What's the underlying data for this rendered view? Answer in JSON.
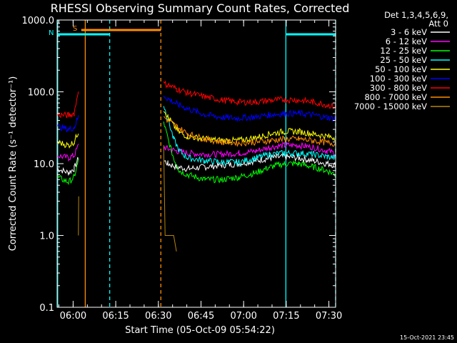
{
  "chart_data": {
    "type": "line",
    "title": "RHESSI Observing Summary Count Rates, Corrected",
    "xlabel": "Start Time (05-Oct-09 05:54:22)",
    "ylabel": "Corrected Count Rate (s⁻¹ detector⁻¹)",
    "yscale": "log",
    "ylim": [
      0.1,
      1000
    ],
    "xlim_minutes": [
      0,
      98
    ],
    "x_unit": "minutes after 05:54:22",
    "y_ticks": [
      {
        "value": 1000,
        "label": "1000.0"
      },
      {
        "value": 100,
        "label": "100.0"
      },
      {
        "value": 10,
        "label": "10.0"
      },
      {
        "value": 1,
        "label": "1.0"
      },
      {
        "value": 0.1,
        "label": "0.1"
      }
    ],
    "x_ticks": [
      {
        "minute": 5.63,
        "label": "06:00"
      },
      {
        "minute": 20.63,
        "label": "06:15"
      },
      {
        "minute": 35.63,
        "label": "06:30"
      },
      {
        "minute": 50.63,
        "label": "06:45"
      },
      {
        "minute": 65.63,
        "label": "07:00"
      },
      {
        "minute": 80.63,
        "label": "07:15"
      },
      {
        "minute": 95.63,
        "label": "07:30"
      }
    ],
    "legend_header": [
      "Det 1,3,4,5,6,9,",
      "Att 0"
    ],
    "legend_position": "right",
    "series": [
      {
        "name": "3 - 6 keV",
        "color": "#ffffff",
        "points": [
          [
            0,
            8.5
          ],
          [
            4,
            7.5
          ],
          [
            6,
            8.5
          ],
          [
            7.5,
            12
          ],
          [
            9,
            null
          ],
          [
            37.5,
            11
          ],
          [
            39,
            10
          ],
          [
            42,
            9
          ],
          [
            46,
            8.5
          ],
          [
            52,
            9
          ],
          [
            58,
            9.5
          ],
          [
            64,
            10
          ],
          [
            70,
            11
          ],
          [
            75,
            12
          ],
          [
            80,
            12.5
          ],
          [
            85,
            12
          ],
          [
            90,
            11
          ],
          [
            95,
            10
          ],
          [
            98,
            9.5
          ]
        ]
      },
      {
        "name": "6 - 12 keV",
        "color": "#ff00ff",
        "points": [
          [
            0,
            13
          ],
          [
            4,
            12
          ],
          [
            6,
            13
          ],
          [
            7.5,
            18
          ],
          [
            9,
            null
          ],
          [
            37.5,
            17
          ],
          [
            39,
            16
          ],
          [
            42,
            15
          ],
          [
            46,
            14
          ],
          [
            52,
            13.5
          ],
          [
            58,
            13.5
          ],
          [
            64,
            14
          ],
          [
            70,
            15
          ],
          [
            75,
            17
          ],
          [
            80,
            18
          ],
          [
            85,
            18
          ],
          [
            90,
            17
          ],
          [
            95,
            15
          ],
          [
            98,
            14
          ]
        ]
      },
      {
        "name": "12 - 25 keV",
        "color": "#00ff00",
        "points": [
          [
            0,
            6.5
          ],
          [
            4,
            5.5
          ],
          [
            6,
            6.5
          ],
          [
            7.5,
            11
          ],
          [
            9,
            null
          ],
          [
            37.5,
            38
          ],
          [
            39,
            22
          ],
          [
            41,
            12
          ],
          [
            43,
            8
          ],
          [
            46,
            7
          ],
          [
            52,
            6
          ],
          [
            58,
            6
          ],
          [
            64,
            6.5
          ],
          [
            70,
            7.5
          ],
          [
            75,
            9
          ],
          [
            80,
            10
          ],
          [
            85,
            10
          ],
          [
            90,
            9
          ],
          [
            95,
            8
          ],
          [
            98,
            7
          ]
        ]
      },
      {
        "name": "25 - 50 keV",
        "color": "#00ffff",
        "points": [
          [
            37.5,
            65
          ],
          [
            39,
            42
          ],
          [
            41,
            22
          ],
          [
            43,
            15
          ],
          [
            46,
            12
          ],
          [
            52,
            11
          ],
          [
            58,
            10.5
          ],
          [
            64,
            10.5
          ],
          [
            70,
            12
          ],
          [
            75,
            13.5
          ],
          [
            80,
            14
          ],
          [
            85,
            14
          ],
          [
            90,
            13.5
          ],
          [
            95,
            12.5
          ],
          [
            98,
            12
          ]
        ]
      },
      {
        "name": "50 - 100 keV",
        "color": "#ffff00",
        "points": [
          [
            0,
            20
          ],
          [
            4,
            18
          ],
          [
            6,
            20
          ],
          [
            7.5,
            28
          ],
          [
            9,
            null
          ],
          [
            37.5,
            58
          ],
          [
            39,
            45
          ],
          [
            41,
            34
          ],
          [
            43,
            27
          ],
          [
            46,
            24
          ],
          [
            52,
            22
          ],
          [
            58,
            21
          ],
          [
            64,
            21
          ],
          [
            70,
            23
          ],
          [
            75,
            26
          ],
          [
            80,
            28
          ],
          [
            85,
            28
          ],
          [
            90,
            26
          ],
          [
            95,
            24
          ],
          [
            98,
            23
          ]
        ]
      },
      {
        "name": "100 - 300 keV",
        "color": "#0000ff",
        "points": [
          [
            0,
            33
          ],
          [
            4,
            30
          ],
          [
            6,
            32
          ],
          [
            7.5,
            45
          ],
          [
            9,
            null
          ],
          [
            37.5,
            90
          ],
          [
            39,
            80
          ],
          [
            42,
            68
          ],
          [
            46,
            58
          ],
          [
            52,
            48
          ],
          [
            58,
            44
          ],
          [
            64,
            43
          ],
          [
            70,
            45
          ],
          [
            75,
            48
          ],
          [
            80,
            50
          ],
          [
            85,
            50
          ],
          [
            90,
            48
          ],
          [
            95,
            44
          ],
          [
            98,
            42
          ]
        ]
      },
      {
        "name": "300 - 800 keV",
        "color": "#ff0000",
        "points": [
          [
            0,
            48
          ],
          [
            4,
            47
          ],
          [
            6,
            50
          ],
          [
            7.5,
            110
          ],
          [
            9,
            null
          ],
          [
            37.5,
            130
          ],
          [
            39,
            125
          ],
          [
            42,
            110
          ],
          [
            46,
            97
          ],
          [
            52,
            85
          ],
          [
            58,
            77
          ],
          [
            64,
            72
          ],
          [
            70,
            72
          ],
          [
            75,
            76
          ],
          [
            80,
            78
          ],
          [
            85,
            77
          ],
          [
            90,
            72
          ],
          [
            95,
            66
          ],
          [
            98,
            62
          ]
        ]
      },
      {
        "name": "800 - 7000 keV",
        "color": "#ff8c00",
        "points": [
          [
            37.5,
            45
          ],
          [
            39,
            40
          ],
          [
            42,
            33
          ],
          [
            46,
            26
          ],
          [
            52,
            22
          ],
          [
            58,
            20
          ],
          [
            64,
            19.5
          ],
          [
            70,
            20
          ],
          [
            75,
            21
          ],
          [
            80,
            22
          ],
          [
            85,
            22
          ],
          [
            90,
            21
          ],
          [
            95,
            19.5
          ],
          [
            98,
            19
          ]
        ]
      },
      {
        "name": "7000 - 15000 keV",
        "color": "#b8860b",
        "points": [
          [
            7.5,
            1.0
          ],
          [
            7.6,
            3.5
          ],
          [
            7.7,
            null
          ],
          [
            37.5,
            18
          ],
          [
            38,
            1.0
          ],
          [
            41,
            1.0
          ],
          [
            42,
            0.6
          ]
        ]
      }
    ],
    "bars": [
      {
        "label": "S",
        "color": "#ff8c00",
        "start": 8.5,
        "end": 36.5,
        "level": "upper"
      },
      {
        "label": "N",
        "color": "#00ffff",
        "start": 0,
        "end": 18.5,
        "level": "lower"
      },
      {
        "label": "",
        "color": "#00ffff",
        "start": 80.5,
        "end": 98,
        "level": "lower"
      }
    ],
    "vlines": [
      {
        "minute": 9.9,
        "color": "#ff8c00",
        "style": "solid"
      },
      {
        "minute": 18.5,
        "color": "#00ffff",
        "style": "dashed"
      },
      {
        "minute": 36.5,
        "color": "#ff8c00",
        "style": "dashed"
      },
      {
        "minute": 80.5,
        "color": "#00ffff",
        "style": "solid"
      },
      {
        "minute": 98,
        "color": "#00ffff",
        "style": "dashed"
      },
      {
        "minute": 0.2,
        "color": "#00ffff",
        "style": "solid"
      }
    ]
  },
  "timestamp": "15-Oct-2021 23:45"
}
